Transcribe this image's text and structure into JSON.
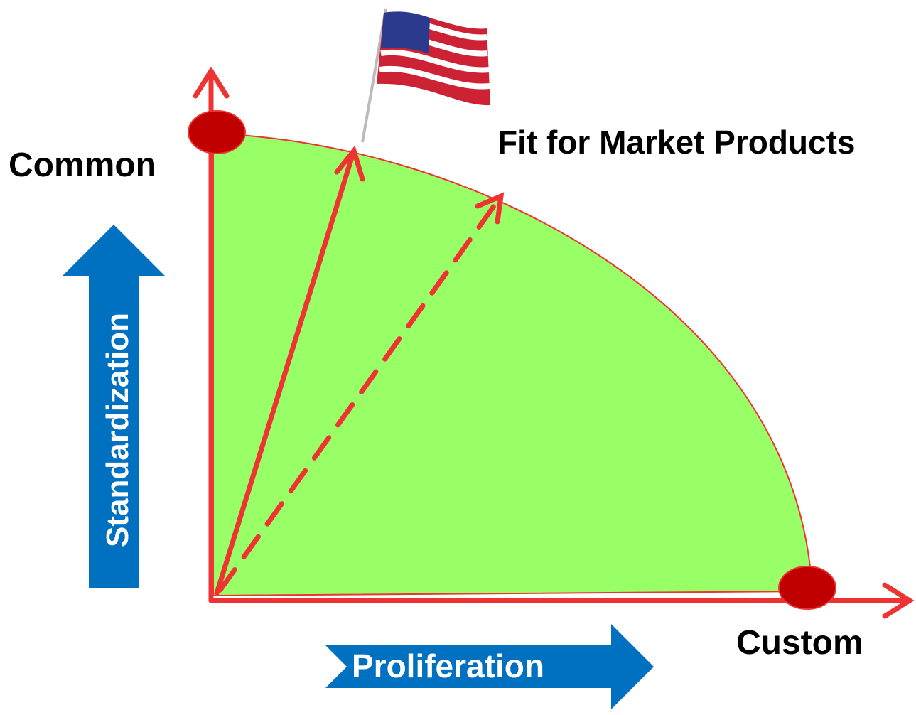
{
  "labels": {
    "top": "Common",
    "right": "Custom",
    "curve": "Fit for Market Products",
    "vertical": "Standardization",
    "horizontal": "Proliferation"
  }
}
